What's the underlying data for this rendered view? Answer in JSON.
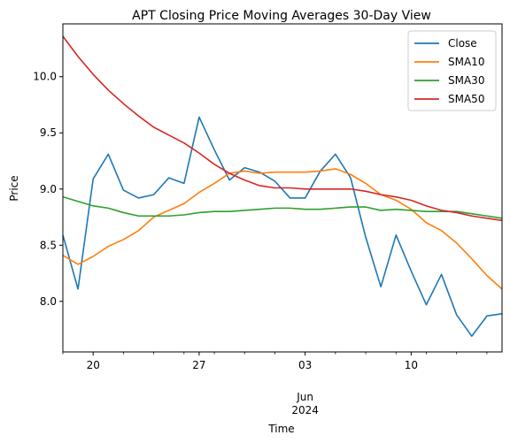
{
  "chart_data": {
    "type": "line",
    "title": "APT Closing Price Moving Averages 30-Day View",
    "xlabel": "Time",
    "ylabel": "Price",
    "xlim": [
      "2024-05-18",
      "2024-06-16"
    ],
    "ylim": [
      7.55,
      10.47
    ],
    "grid": false,
    "legend_position": "top-right",
    "x_tick_labels": [
      {
        "date": "2024-05-20",
        "label": "20"
      },
      {
        "date": "2024-05-27",
        "label": "27"
      },
      {
        "date": "2024-06-03",
        "label": "03"
      },
      {
        "date": "2024-06-10",
        "label": "10"
      }
    ],
    "x_secondary_label": {
      "date": "2024-06-03",
      "month": "Jun",
      "year": "2024"
    },
    "y_ticks": [
      8.0,
      8.5,
      9.0,
      9.5,
      10.0
    ],
    "y_tick_labels": [
      "8.0",
      "8.5",
      "9.0",
      "9.5",
      "10.0"
    ],
    "x": [
      "2024-05-18",
      "2024-05-19",
      "2024-05-20",
      "2024-05-21",
      "2024-05-22",
      "2024-05-23",
      "2024-05-24",
      "2024-05-25",
      "2024-05-26",
      "2024-05-27",
      "2024-05-28",
      "2024-05-29",
      "2024-05-30",
      "2024-05-31",
      "2024-06-01",
      "2024-06-02",
      "2024-06-03",
      "2024-06-04",
      "2024-06-05",
      "2024-06-06",
      "2024-06-07",
      "2024-06-08",
      "2024-06-09",
      "2024-06-10",
      "2024-06-11",
      "2024-06-12",
      "2024-06-13",
      "2024-06-14",
      "2024-06-15",
      "2024-06-16"
    ],
    "series": [
      {
        "name": "Close",
        "color": "#1f77b4",
        "values": [
          8.59,
          8.11,
          9.09,
          9.31,
          8.99,
          8.92,
          8.95,
          9.1,
          9.05,
          9.64,
          9.35,
          9.08,
          9.19,
          9.15,
          9.07,
          8.92,
          8.92,
          9.16,
          9.31,
          9.1,
          8.57,
          8.13,
          8.59,
          8.27,
          7.97,
          8.24,
          7.88,
          7.69,
          7.87,
          7.89
        ]
      },
      {
        "name": "SMA10",
        "color": "#ff7f0e",
        "values": [
          8.41,
          8.33,
          8.4,
          8.49,
          8.55,
          8.63,
          8.75,
          8.81,
          8.87,
          8.97,
          9.05,
          9.14,
          9.16,
          9.14,
          9.15,
          9.15,
          9.15,
          9.16,
          9.18,
          9.13,
          9.05,
          8.95,
          8.9,
          8.82,
          8.7,
          8.63,
          8.52,
          8.38,
          8.23,
          8.11
        ]
      },
      {
        "name": "SMA30",
        "color": "#2ca02c",
        "values": [
          8.93,
          8.89,
          8.85,
          8.83,
          8.79,
          8.76,
          8.76,
          8.76,
          8.77,
          8.79,
          8.8,
          8.8,
          8.81,
          8.82,
          8.83,
          8.83,
          8.82,
          8.82,
          8.83,
          8.84,
          8.84,
          8.81,
          8.82,
          8.81,
          8.8,
          8.8,
          8.8,
          8.78,
          8.76,
          8.74
        ]
      },
      {
        "name": "SMA50",
        "color": "#d62728",
        "values": [
          10.36,
          10.18,
          10.02,
          9.88,
          9.76,
          9.65,
          9.55,
          9.48,
          9.41,
          9.32,
          9.22,
          9.14,
          9.08,
          9.03,
          9.01,
          9.01,
          9.0,
          9.0,
          9.0,
          9.0,
          8.98,
          8.95,
          8.93,
          8.9,
          8.85,
          8.81,
          8.79,
          8.76,
          8.74,
          8.72
        ]
      }
    ]
  }
}
